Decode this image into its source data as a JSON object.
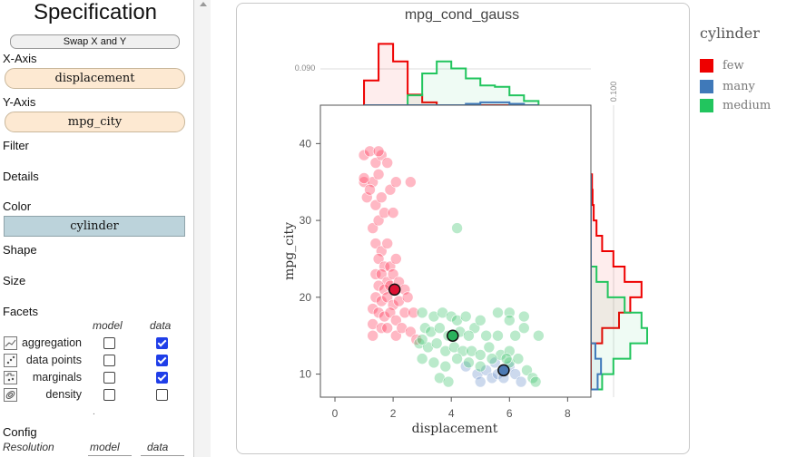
{
  "panel": {
    "title": "Specification",
    "swap_label": "Swap X and Y",
    "x_axis_label": "X-Axis",
    "x_field": "displacement",
    "y_axis_label": "Y-Axis",
    "y_field": "mpg_city",
    "filter_label": "Filter",
    "details_label": "Details",
    "color_label": "Color",
    "color_field": "cylinder",
    "shape_label": "Shape",
    "size_label": "Size",
    "facets_label": "Facets",
    "facet_col_model": "model",
    "facet_col_data": "data",
    "facets": [
      {
        "label": "aggregation",
        "icon": "aggregation-icon",
        "model": false,
        "data": true
      },
      {
        "label": "data points",
        "icon": "data-points-icon",
        "model": false,
        "data": true
      },
      {
        "label": "marginals",
        "icon": "marginals-icon",
        "model": false,
        "data": true
      },
      {
        "label": "density",
        "icon": "density-icon",
        "model": false,
        "data": false
      }
    ],
    "dot": ".",
    "config_label": "Config",
    "resolution_label": "Resolution",
    "res_col_model": "model",
    "res_col_data": "data"
  },
  "legend": {
    "title": "cylinder",
    "items": [
      {
        "label": "few",
        "color": "#ee0000"
      },
      {
        "label": "many",
        "color": "#3f79b9"
      },
      {
        "label": "medium",
        "color": "#22c55e"
      }
    ]
  },
  "chart_data": {
    "type": "scatter",
    "title": "mpg_cond_gauss",
    "xlabel": "displacement",
    "ylabel": "mpg_city",
    "xlim": [
      -0.5,
      8.8
    ],
    "ylim": [
      7,
      45
    ],
    "x_ticks": [
      0,
      2,
      4,
      6,
      8
    ],
    "y_ticks": [
      10,
      20,
      30,
      40
    ],
    "top_marginal_tick": "0.090",
    "right_marginal_tick": "0.100",
    "colors": {
      "few": "#ee0000",
      "many": "#3f79b9",
      "medium": "#22c55e"
    },
    "series": [
      {
        "name": "few",
        "points": [
          [
            1.0,
            38.5
          ],
          [
            1.2,
            39
          ],
          [
            1.4,
            37.5
          ],
          [
            1.6,
            38.5
          ],
          [
            1.0,
            35
          ],
          [
            1.3,
            35
          ],
          [
            1.5,
            36
          ],
          [
            1.8,
            37.5
          ],
          [
            1.1,
            33
          ],
          [
            1.4,
            32
          ],
          [
            1.6,
            33
          ],
          [
            1.9,
            34
          ],
          [
            2.1,
            35
          ],
          [
            2.6,
            35
          ],
          [
            1.3,
            29
          ],
          [
            1.5,
            30
          ],
          [
            1.7,
            31
          ],
          [
            2.0,
            31
          ],
          [
            1.4,
            27
          ],
          [
            1.6,
            26
          ],
          [
            1.8,
            27
          ],
          [
            1.5,
            25
          ],
          [
            1.7,
            24
          ],
          [
            1.9,
            24
          ],
          [
            2.1,
            25
          ],
          [
            1.4,
            23
          ],
          [
            1.6,
            23
          ],
          [
            1.8,
            22
          ],
          [
            2.0,
            23
          ],
          [
            1.5,
            21.5
          ],
          [
            1.7,
            21
          ],
          [
            1.9,
            21.5
          ],
          [
            2.2,
            22
          ],
          [
            2.4,
            21
          ],
          [
            1.4,
            20
          ],
          [
            1.6,
            19.5
          ],
          [
            1.8,
            20
          ],
          [
            2.0,
            19
          ],
          [
            2.2,
            19.5
          ],
          [
            2.5,
            20
          ],
          [
            1.3,
            18.5
          ],
          [
            1.5,
            18
          ],
          [
            1.7,
            17.5
          ],
          [
            1.9,
            18
          ],
          [
            2.1,
            17
          ],
          [
            2.4,
            18
          ],
          [
            2.7,
            18
          ],
          [
            1.3,
            16.5
          ],
          [
            1.6,
            16
          ],
          [
            1.8,
            16
          ],
          [
            2.1,
            15
          ],
          [
            2.3,
            16
          ],
          [
            2.6,
            15.5
          ],
          [
            2.8,
            14.5
          ],
          [
            1.3,
            15
          ],
          [
            1.0,
            35.5
          ],
          [
            1.2,
            34
          ],
          [
            1.5,
            39
          ]
        ]
      },
      {
        "name": "many",
        "points": [
          [
            4.5,
            11
          ],
          [
            4.9,
            10
          ],
          [
            5.2,
            10.5
          ],
          [
            5.4,
            9.5
          ],
          [
            5.6,
            10
          ],
          [
            5.8,
            9.5
          ],
          [
            6.0,
            11
          ],
          [
            6.2,
            10
          ],
          [
            6.4,
            9
          ],
          [
            5.5,
            11.5
          ],
          [
            5.0,
            9
          ]
        ]
      },
      {
        "name": "medium",
        "points": [
          [
            3.0,
            18
          ],
          [
            3.4,
            17.5
          ],
          [
            3.7,
            18
          ],
          [
            4.0,
            17.5
          ],
          [
            4.2,
            17
          ],
          [
            4.5,
            17.5
          ],
          [
            4.8,
            16
          ],
          [
            5.0,
            17
          ],
          [
            5.6,
            18
          ],
          [
            6.0,
            18
          ],
          [
            3.1,
            16
          ],
          [
            3.3,
            15.5
          ],
          [
            3.6,
            16
          ],
          [
            3.9,
            15
          ],
          [
            4.3,
            15.5
          ],
          [
            4.6,
            15
          ],
          [
            5.2,
            15
          ],
          [
            5.6,
            15
          ],
          [
            6.2,
            15
          ],
          [
            6.5,
            16
          ],
          [
            7.0,
            15
          ],
          [
            2.9,
            14
          ],
          [
            3.2,
            13.5
          ],
          [
            3.5,
            14
          ],
          [
            3.8,
            13
          ],
          [
            4.1,
            13.5
          ],
          [
            4.4,
            13
          ],
          [
            4.7,
            13
          ],
          [
            5.0,
            12.5
          ],
          [
            5.3,
            13.5
          ],
          [
            5.7,
            12.5
          ],
          [
            6.0,
            13
          ],
          [
            3.0,
            12
          ],
          [
            3.4,
            11.5
          ],
          [
            3.8,
            11
          ],
          [
            4.2,
            12
          ],
          [
            4.6,
            11.5
          ],
          [
            5.0,
            11
          ],
          [
            5.4,
            12
          ],
          [
            6.0,
            11.5
          ],
          [
            6.3,
            12
          ],
          [
            6.6,
            10.5
          ],
          [
            6.8,
            9.5
          ],
          [
            3.6,
            9.5
          ],
          [
            3.9,
            9
          ],
          [
            4.2,
            29
          ],
          [
            6.0,
            17
          ],
          [
            6.5,
            17.5
          ],
          [
            6.9,
            9
          ],
          [
            3.0,
            14.5
          ],
          [
            5.9,
            12
          ]
        ]
      }
    ],
    "means": [
      {
        "series": "few",
        "x": 2.05,
        "y": 21
      },
      {
        "series": "medium",
        "x": 4.05,
        "y": 15
      },
      {
        "series": "many",
        "x": 5.8,
        "y": 10.5
      }
    ],
    "top_marginal": {
      "bins": [
        1.0,
        1.5,
        2.0,
        2.5,
        3.0,
        3.5,
        4.0,
        4.5,
        5.0,
        5.5,
        6.0,
        6.5,
        7.0
      ],
      "few": [
        0.035,
        0.087,
        0.062,
        0.015,
        0.004,
        0,
        0,
        0,
        0,
        0,
        0,
        0
      ],
      "medium": [
        0,
        0,
        0,
        0.014,
        0.045,
        0.062,
        0.052,
        0.038,
        0.028,
        0.026,
        0.014,
        0.006
      ],
      "many": [
        0,
        0,
        0,
        0,
        0,
        0,
        0,
        0.002,
        0.004,
        0.004,
        0.002,
        0
      ]
    },
    "right_marginal": {
      "bins": [
        8,
        10,
        12,
        14,
        16,
        18,
        20,
        22,
        24,
        26,
        28,
        30,
        32,
        34,
        36
      ],
      "few": [
        0,
        0,
        0,
        0.02,
        0.05,
        0.07,
        0.09,
        0.06,
        0.04,
        0.02,
        0.01,
        0.005,
        0.003,
        0.002
      ],
      "medium": [
        0.02,
        0.04,
        0.07,
        0.1,
        0.09,
        0.06,
        0.03,
        0.01,
        0,
        0,
        0,
        0,
        0,
        0
      ],
      "many": [
        0.012,
        0.018,
        0.008,
        0,
        0,
        0,
        0,
        0,
        0,
        0,
        0,
        0,
        0,
        0
      ]
    }
  }
}
